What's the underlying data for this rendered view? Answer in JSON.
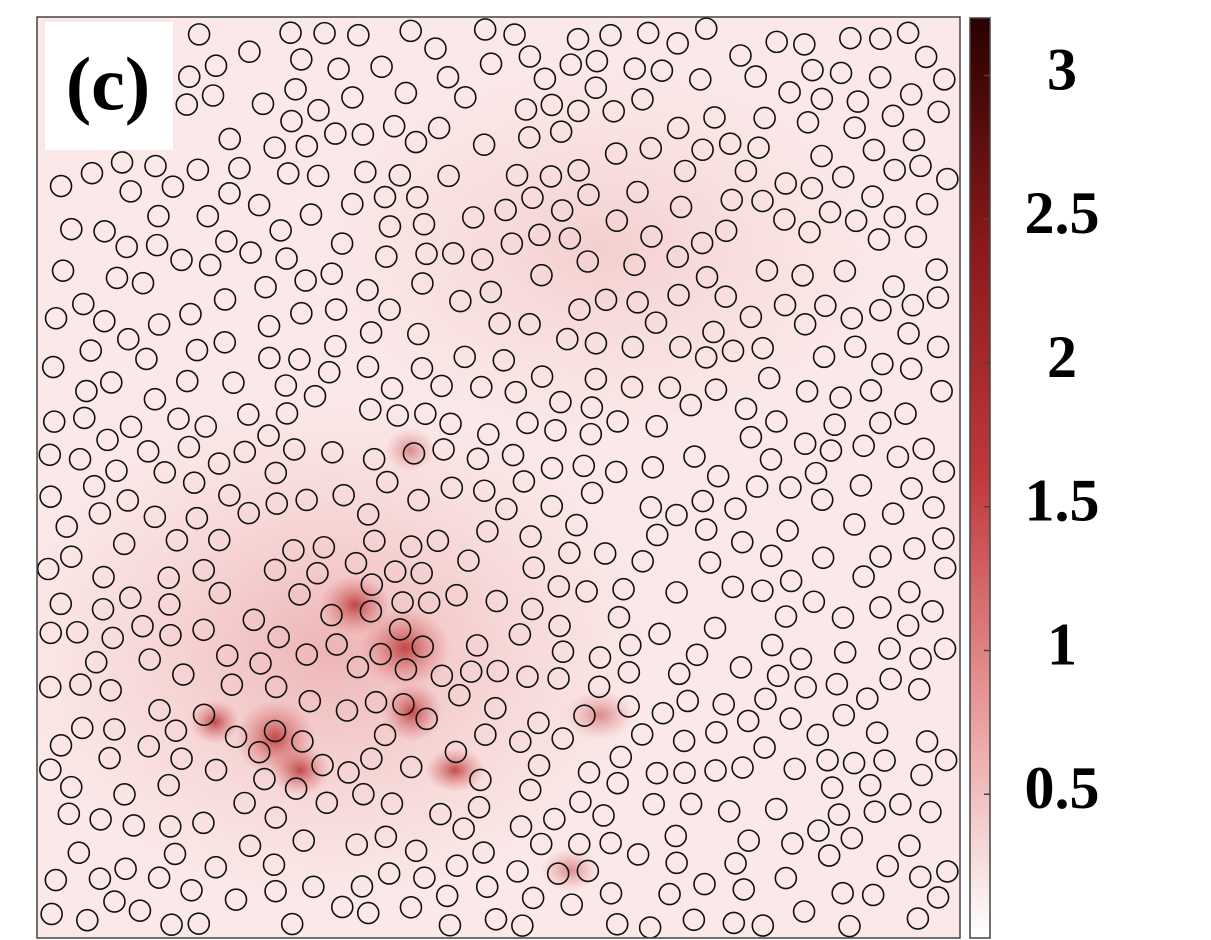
{
  "chart_data": {
    "type": "heatmap",
    "panel_label": "(c)",
    "colormap": [
      "#ffffff",
      "#e89a9a",
      "#c0393b",
      "#8a1a1a",
      "#2a0000"
    ],
    "clim": [
      0,
      3.2
    ],
    "cticks": [
      0.5,
      1,
      1.5,
      2,
      2.5,
      3
    ]
  }
}
